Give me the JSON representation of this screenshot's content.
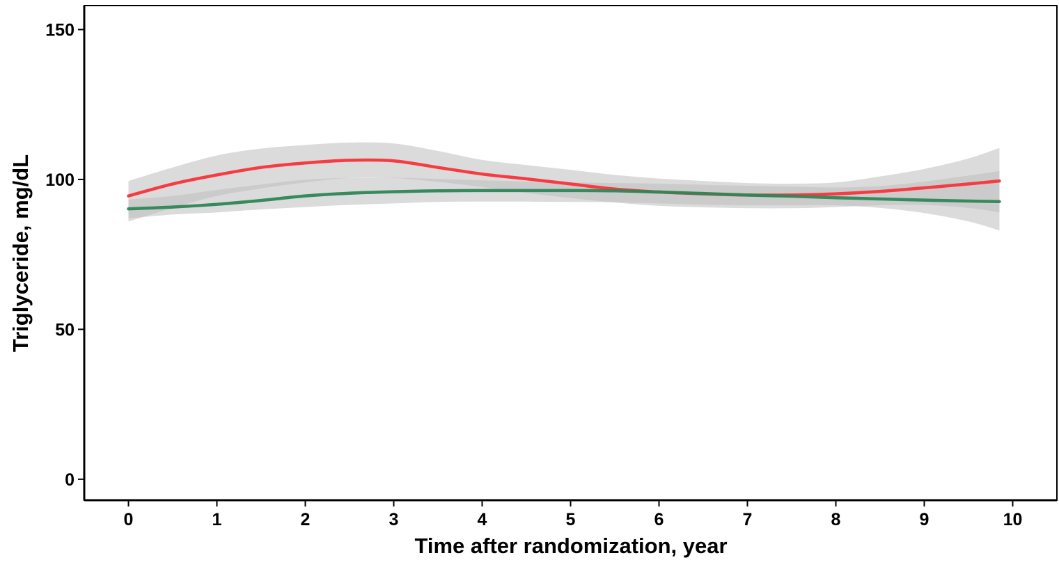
{
  "chart_data": {
    "type": "line",
    "title": "",
    "xlabel": "Time after randomization, year",
    "ylabel": "Triglyceride, mg/dL",
    "xlim": [
      -0.5,
      10.5
    ],
    "ylim": [
      -7,
      158
    ],
    "x_ticks": [
      "0",
      "1",
      "2",
      "3",
      "4",
      "5",
      "6",
      "7",
      "8",
      "9",
      "10"
    ],
    "y_ticks": [
      "0",
      "50",
      "100",
      "150"
    ],
    "grid": false,
    "legend": "none",
    "series": [
      {
        "color": "#f8343a",
        "x": [
          0,
          0.5,
          1,
          1.5,
          2,
          2.5,
          3,
          3.5,
          4,
          4.5,
          5,
          5.5,
          6,
          6.5,
          7,
          7.5,
          8,
          8.5,
          9,
          9.5,
          9.85
        ],
        "y": [
          94.5,
          98.5,
          101.5,
          104,
          105.5,
          106.4,
          106.2,
          104,
          101.8,
          100.2,
          98.5,
          96.8,
          95.8,
          95.2,
          94.8,
          94.8,
          95.2,
          96,
          97.2,
          98.5,
          99.5
        ],
        "ci_lower": [
          86,
          90.5,
          94.5,
          97,
          99,
          100.5,
          100.5,
          99.2,
          97.5,
          95.5,
          93.8,
          92.3,
          91.2,
          90.7,
          90.4,
          90.4,
          90.8,
          91.4,
          91.5,
          90.5,
          89
        ],
        "ci_upper": [
          99.5,
          104,
          108,
          110.3,
          111.5,
          112.3,
          112,
          109.5,
          106.5,
          104.8,
          103.2,
          101.5,
          100.3,
          99.5,
          98.8,
          98.6,
          99,
          101,
          103.5,
          107,
          110.5
        ]
      },
      {
        "color": "#2e8657",
        "x": [
          0,
          0.5,
          1,
          1.5,
          2,
          2.5,
          3,
          3.5,
          4,
          4.5,
          5,
          5.5,
          6,
          6.5,
          7,
          7.5,
          8,
          8.5,
          9,
          9.5,
          9.85
        ],
        "y": [
          90.2,
          90.8,
          91.7,
          93,
          94.5,
          95.4,
          95.9,
          96.2,
          96.3,
          96.3,
          96.3,
          96.2,
          95.8,
          95.3,
          94.8,
          94.4,
          93.9,
          93.5,
          93.1,
          92.8,
          92.6
        ],
        "ci_lower": [
          87,
          88.3,
          89,
          90,
          90.8,
          91.5,
          92,
          92.5,
          92.6,
          92.6,
          92.5,
          92.4,
          92,
          91.6,
          91.4,
          91.4,
          91.4,
          90.5,
          88.8,
          86,
          83
        ],
        "ci_upper": [
          93.3,
          94.5,
          96.5,
          98.3,
          99.9,
          100.5,
          100.6,
          100.2,
          99.7,
          99.3,
          99,
          98.8,
          98.6,
          98.2,
          97.9,
          97.6,
          97.3,
          97.8,
          99.3,
          101.3,
          102.8
        ]
      }
    ],
    "ci_band_color": "#bdbdbd"
  }
}
